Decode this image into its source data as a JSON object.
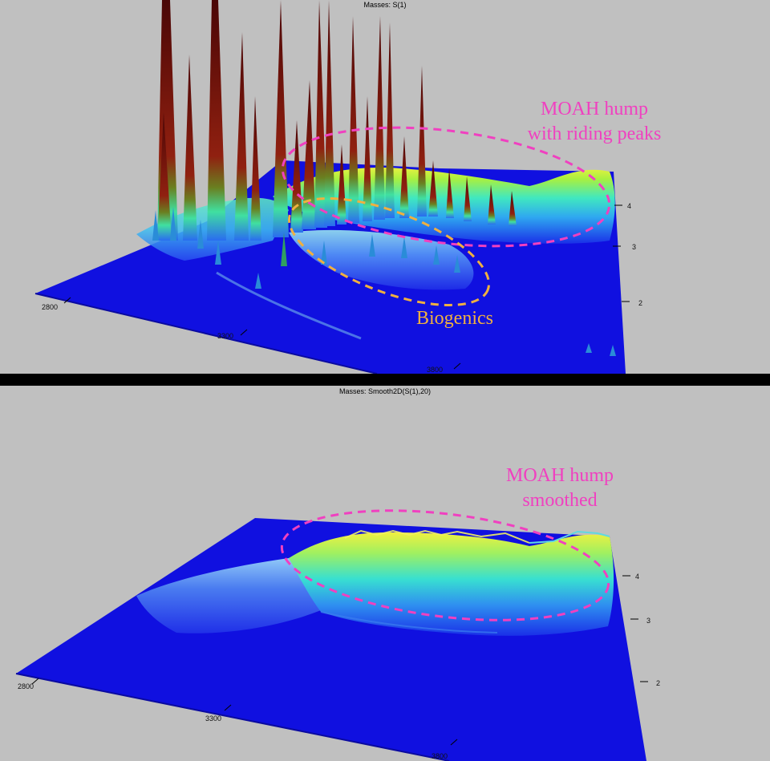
{
  "colors": {
    "background": "#c0c0c0",
    "divider": "#000000",
    "floor": "#1010e0",
    "moah_annotation": "#f040c0",
    "biogenics_annotation": "#f0b040",
    "colormap": [
      "#1010e0",
      "#2a6cf0",
      "#30e0f0",
      "#50f080",
      "#f0f040",
      "#a01010",
      "#500808"
    ]
  },
  "panels": [
    {
      "title": "Masses:  S(1)",
      "x_ticks": [
        "2800",
        "3300",
        "3800"
      ],
      "y_ticks": [
        "4",
        "3",
        "2"
      ],
      "annotations": [
        {
          "lines": [
            "MOAH hump",
            "with riding peaks"
          ],
          "color_key": "moah_annotation"
        },
        {
          "lines": [
            "Biogenics"
          ],
          "color_key": "biogenics_annotation"
        }
      ]
    },
    {
      "title": "Masses:  Smooth2D(S(1),20)",
      "x_ticks": [
        "2800",
        "3300",
        "3800"
      ],
      "y_ticks": [
        "4",
        "3",
        "2"
      ],
      "annotations": [
        {
          "lines": [
            "MOAH hump",
            "smoothed"
          ],
          "color_key": "moah_annotation"
        }
      ]
    }
  ],
  "chart_data": [
    {
      "type": "surface",
      "title": "Masses:  S(1)",
      "x_ticks": [
        2800,
        3300,
        3800
      ],
      "y_ticks": [
        4,
        3,
        2
      ],
      "annotations": [
        "MOAH hump with riding peaks",
        "Biogenics"
      ]
    },
    {
      "type": "surface",
      "title": "Masses:  Smooth2D(S(1),20)",
      "x_ticks": [
        2800,
        3300,
        3800
      ],
      "y_ticks": [
        4,
        3,
        2
      ],
      "annotations": [
        "MOAH hump smoothed"
      ]
    }
  ]
}
